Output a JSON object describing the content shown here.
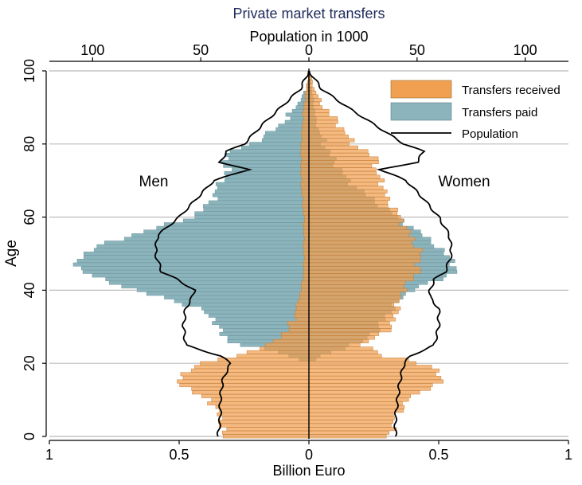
{
  "chart_data": {
    "type": "bar",
    "title": "Private market transfers",
    "top_axis": {
      "label": "Population in 1000",
      "ticks": [
        "100",
        "50",
        "0",
        "50",
        "100"
      ],
      "range": [
        -120,
        120
      ]
    },
    "bottom_axis": {
      "label": "Billion Euro",
      "ticks": [
        "1",
        "0.5",
        "0",
        "0.5",
        "1"
      ],
      "range": [
        -1,
        1
      ]
    },
    "y_axis": {
      "label": "Age",
      "ticks": [
        "0",
        "20",
        "40",
        "60",
        "80",
        "100"
      ],
      "range": [
        0,
        100
      ]
    },
    "side_labels": {
      "left": "Men",
      "right": "Women"
    },
    "legend": {
      "position": "top-right",
      "items": [
        {
          "label": "Transfers received",
          "color": "#F0A050",
          "kind": "box"
        },
        {
          "label": "Transfers paid",
          "color": "#8CB4BC",
          "kind": "box"
        },
        {
          "label": "Population",
          "color": "#000000",
          "kind": "line"
        }
      ]
    },
    "colors": {
      "received": "#F0A050",
      "paid": "#8CB4BC",
      "overlap": "#7A8C6E",
      "grid": "#BBBBBB"
    },
    "series": [
      {
        "name": "Transfers received",
        "side": "men",
        "age_knots": [
          0,
          5,
          10,
          12,
          15,
          17,
          19,
          21,
          22,
          24,
          25,
          30,
          40,
          45,
          50,
          60,
          70,
          80,
          90,
          95,
          100
        ],
        "value_knots": [
          0.33,
          0.34,
          0.38,
          0.45,
          0.5,
          0.49,
          0.44,
          0.36,
          0.28,
          0.2,
          0.15,
          0.07,
          0.03,
          0.02,
          0.02,
          0.02,
          0.03,
          0.03,
          0.02,
          0.01,
          0
        ]
      },
      {
        "name": "Transfers paid",
        "side": "men",
        "age_knots": [
          0,
          20,
          23,
          26,
          28,
          30,
          35,
          40,
          43,
          45,
          48,
          50,
          53,
          55,
          60,
          62,
          65,
          70,
          73,
          75,
          78,
          80,
          85,
          90,
          95,
          100
        ],
        "value_knots": [
          0,
          0,
          0.12,
          0.31,
          0.34,
          0.34,
          0.42,
          0.67,
          0.8,
          0.87,
          0.9,
          0.86,
          0.78,
          0.68,
          0.45,
          0.41,
          0.37,
          0.34,
          0.3,
          0.34,
          0.3,
          0.22,
          0.11,
          0.05,
          0.01,
          0
        ]
      },
      {
        "name": "Population",
        "side": "men",
        "age_knots": [
          0,
          5,
          10,
          15,
          18,
          20,
          22,
          25,
          30,
          35,
          38,
          40,
          43,
          45,
          50,
          55,
          60,
          65,
          70,
          73,
          75,
          78,
          80,
          85,
          90,
          95,
          100
        ],
        "value_knots": [
          42,
          41,
          41,
          40,
          38,
          36,
          41,
          57,
          58,
          57,
          54,
          53,
          61,
          68,
          71,
          70,
          60,
          52,
          44,
          28,
          41,
          38,
          30,
          22,
          13,
          4,
          0
        ]
      },
      {
        "name": "Transfers received",
        "side": "women",
        "age_knots": [
          0,
          5,
          10,
          13,
          15,
          17,
          19,
          21,
          22,
          24,
          25,
          30,
          40,
          45,
          50,
          60,
          65,
          70,
          73,
          75,
          78,
          80,
          85,
          90,
          95,
          100
        ],
        "value_knots": [
          0.31,
          0.33,
          0.38,
          0.45,
          0.52,
          0.5,
          0.47,
          0.38,
          0.29,
          0.23,
          0.21,
          0.32,
          0.36,
          0.42,
          0.43,
          0.35,
          0.3,
          0.28,
          0.25,
          0.27,
          0.22,
          0.17,
          0.12,
          0.06,
          0.02,
          0
        ]
      },
      {
        "name": "Transfers paid",
        "side": "women",
        "age_knots": [
          0,
          20,
          23,
          26,
          28,
          30,
          35,
          40,
          43,
          45,
          48,
          50,
          53,
          55,
          60,
          65,
          70,
          75,
          80,
          85,
          90,
          95,
          100
        ],
        "value_knots": [
          0,
          0,
          0.08,
          0.21,
          0.24,
          0.27,
          0.32,
          0.39,
          0.51,
          0.56,
          0.56,
          0.52,
          0.48,
          0.44,
          0.34,
          0.24,
          0.15,
          0.1,
          0.06,
          0.03,
          0.02,
          0.01,
          0
        ]
      },
      {
        "name": "Population",
        "side": "women",
        "age_knots": [
          0,
          5,
          10,
          15,
          20,
          22,
          25,
          30,
          35,
          38,
          40,
          43,
          45,
          50,
          55,
          60,
          65,
          70,
          73,
          75,
          78,
          80,
          85,
          90,
          95,
          100
        ],
        "value_knots": [
          40,
          40,
          41,
          42,
          44,
          47,
          58,
          60,
          60,
          56,
          56,
          58,
          63,
          66,
          65,
          60,
          53,
          45,
          33,
          50,
          53,
          44,
          31,
          18,
          6,
          0
        ]
      }
    ]
  }
}
